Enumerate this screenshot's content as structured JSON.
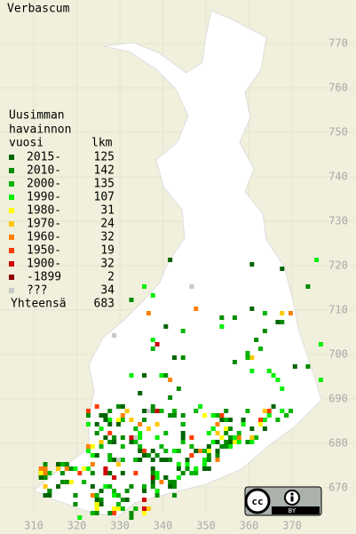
{
  "title": "Verbascum",
  "legend": {
    "heading": [
      "Uusimman",
      "havainnon",
      "vuosi"
    ],
    "count_heading": "lkm",
    "items": [
      {
        "label": "2015-",
        "count": 125,
        "color": "#006400"
      },
      {
        "label": "2010-",
        "count": 142,
        "color": "#008c00"
      },
      {
        "label": "2000-",
        "count": 135,
        "color": "#00b400"
      },
      {
        "label": "1990-",
        "count": 107,
        "color": "#00ee00"
      },
      {
        "label": "1980-",
        "count": 31,
        "color": "#ffff00"
      },
      {
        "label": "1970-",
        "count": 24,
        "color": "#ffc800"
      },
      {
        "label": "1960-",
        "count": 32,
        "color": "#ff8000"
      },
      {
        "label": "1950-",
        "count": 19,
        "color": "#ff3c00"
      },
      {
        "label": "1900-",
        "count": 32,
        "color": "#d20000"
      },
      {
        "label": "-1899",
        "count": 2,
        "color": "#8c0000"
      },
      {
        "label": "???",
        "count": 34,
        "color": "#c8c8c8"
      }
    ],
    "total_label": "Yhteensä",
    "total": 683
  },
  "x_ticks": [
    310,
    320,
    330,
    340,
    350,
    360,
    370
  ],
  "y_ticks": [
    670,
    680,
    690,
    700,
    710,
    720,
    730,
    740,
    750,
    760,
    770
  ],
  "license_badge": {
    "icon": "cc",
    "label": "BY"
  }
}
